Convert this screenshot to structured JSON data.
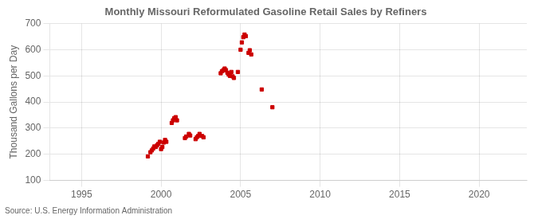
{
  "chart_data": {
    "type": "scatter",
    "title": "Monthly Missouri Reformulated Gasoline Retail Sales by Refiners",
    "ylabel": "Thousand Gallons per Day",
    "annotations": [
      "Source: U.S. Energy Information Administration"
    ],
    "color": "#cc0000",
    "marker": "square",
    "grid": true,
    "xlim": [
      1993,
      2023
    ],
    "ylim": [
      100,
      700
    ],
    "xticks": [
      1995,
      2000,
      2005,
      2010,
      2015,
      2020
    ],
    "yticks": [
      100,
      200,
      300,
      400,
      500,
      600,
      700
    ],
    "x": [
      1999.17,
      1999.33,
      1999.42,
      1999.5,
      1999.58,
      1999.67,
      1999.75,
      1999.83,
      1999.92,
      2000.0,
      2000.08,
      2000.17,
      2000.25,
      2000.33,
      2000.67,
      2000.75,
      2000.83,
      2000.92,
      2001.0,
      2001.5,
      2001.58,
      2001.75,
      2001.83,
      2002.17,
      2002.25,
      2002.33,
      2002.42,
      2002.58,
      2002.67,
      2003.75,
      2003.83,
      2003.92,
      2004.0,
      2004.08,
      2004.17,
      2004.25,
      2004.33,
      2004.42,
      2004.5,
      2004.58,
      2004.83,
      2005.0,
      2005.08,
      2005.17,
      2005.25,
      2005.33,
      2005.5,
      2005.58,
      2005.67,
      2006.33,
      2007.0
    ],
    "values": [
      192,
      208,
      215,
      222,
      230,
      228,
      235,
      240,
      248,
      220,
      228,
      245,
      255,
      248,
      320,
      330,
      338,
      342,
      330,
      262,
      268,
      278,
      272,
      258,
      265,
      270,
      278,
      270,
      265,
      510,
      518,
      522,
      528,
      522,
      512,
      505,
      500,
      515,
      498,
      492,
      515,
      600,
      628,
      648,
      658,
      652,
      588,
      598,
      582,
      448,
      380
    ]
  }
}
